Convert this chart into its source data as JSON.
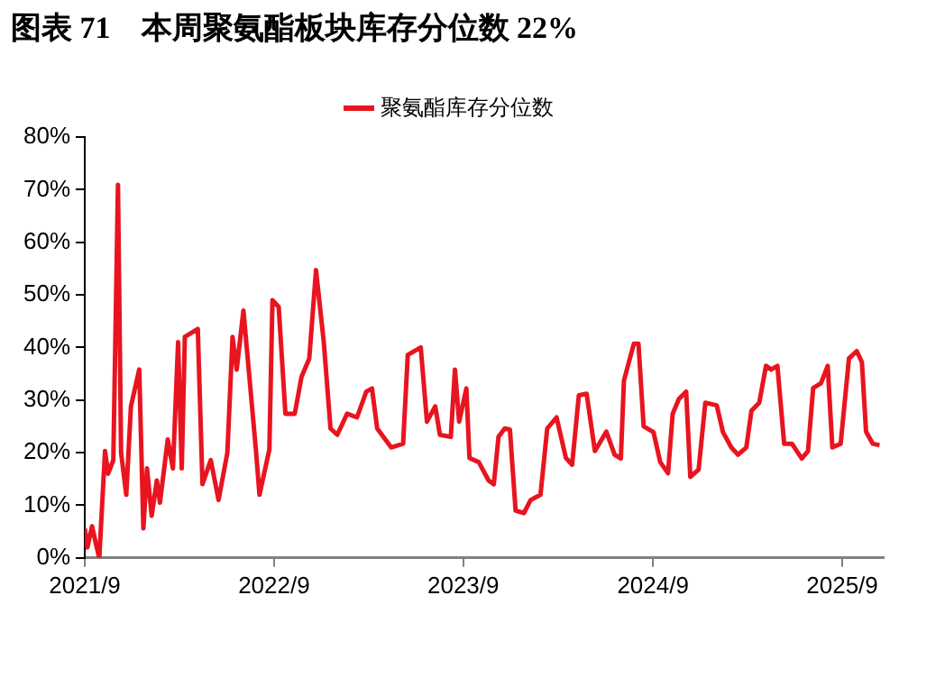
{
  "chart_data": {
    "type": "line",
    "title": "图表 71　本周聚氨酯板块库存分位数 22%",
    "xlim": [
      "2021-09-01",
      "2025-11-20"
    ],
    "xticks": [
      {
        "value": "2021-09-01",
        "label": "2021/9"
      },
      {
        "value": "2022-09-01",
        "label": "2022/9"
      },
      {
        "value": "2023-09-01",
        "label": "2023/9"
      },
      {
        "value": "2024-09-01",
        "label": "2024/9"
      },
      {
        "value": "2025-09-01",
        "label": "2025/9"
      }
    ],
    "ylim": [
      0,
      80
    ],
    "yticks": [
      {
        "value": 0,
        "label": "0%"
      },
      {
        "value": 10,
        "label": "10%"
      },
      {
        "value": 20,
        "label": "20%"
      },
      {
        "value": 30,
        "label": "30%"
      },
      {
        "value": 40,
        "label": "40%"
      },
      {
        "value": 50,
        "label": "50%"
      },
      {
        "value": 60,
        "label": "60%"
      },
      {
        "value": 70,
        "label": "70%"
      },
      {
        "value": 80,
        "label": "80%"
      }
    ],
    "grid": false,
    "legend": "top",
    "marker": "none",
    "line_style": "solid",
    "series": [
      {
        "name": "聚氨酯库存分位数",
        "color": "#e8141f",
        "x": [
          "2021-09-01",
          "2021-09-06",
          "2021-09-15",
          "2021-09-24",
          "2021-09-29",
          "2021-10-10",
          "2021-10-16",
          "2021-10-26",
          "2021-11-04",
          "2021-11-10",
          "2021-11-20",
          "2021-11-29",
          "2021-12-15",
          "2021-12-23",
          "2021-12-30",
          "2022-01-08",
          "2022-01-18",
          "2022-01-24",
          "2022-02-08",
          "2022-02-18",
          "2022-02-28",
          "2022-03-07",
          "2022-03-13",
          "2022-04-07",
          "2022-04-16",
          "2022-05-02",
          "2022-05-17",
          "2022-06-03",
          "2022-06-13",
          "2022-06-21",
          "2022-07-04",
          "2022-07-28",
          "2022-08-04",
          "2022-08-23",
          "2022-08-29",
          "2022-09-10",
          "2022-09-23",
          "2022-10-11",
          "2022-10-24",
          "2022-11-08",
          "2022-11-21",
          "2022-12-06",
          "2022-12-19",
          "2023-01-01",
          "2023-01-20",
          "2023-02-08",
          "2023-02-26",
          "2023-03-09",
          "2023-03-19",
          "2023-04-15",
          "2023-05-08",
          "2023-05-17",
          "2023-06-11",
          "2023-06-23",
          "2023-07-09",
          "2023-07-18",
          "2023-08-08",
          "2023-08-16",
          "2023-08-24",
          "2023-09-07",
          "2023-09-13",
          "2023-10-01",
          "2023-10-20",
          "2023-10-30",
          "2023-11-08",
          "2023-11-20",
          "2023-11-30",
          "2023-12-11",
          "2023-12-27",
          "2024-01-09",
          "2024-01-28",
          "2024-02-10",
          "2024-02-28",
          "2024-03-17",
          "2024-03-29",
          "2024-04-11",
          "2024-04-26",
          "2024-05-12",
          "2024-06-03",
          "2024-06-19",
          "2024-07-01",
          "2024-07-07",
          "2024-07-26",
          "2024-08-04",
          "2024-08-14",
          "2024-09-02",
          "2024-09-15",
          "2024-09-30",
          "2024-10-09",
          "2024-10-21",
          "2024-11-04",
          "2024-11-12",
          "2024-11-28",
          "2024-12-11",
          "2025-01-02",
          "2025-01-14",
          "2025-01-30",
          "2025-02-12",
          "2025-02-28",
          "2025-03-10",
          "2025-03-25",
          "2025-04-07",
          "2025-04-17",
          "2025-04-29",
          "2025-05-12",
          "2025-05-27",
          "2025-06-15",
          "2025-06-27",
          "2025-07-07",
          "2025-07-22",
          "2025-08-04",
          "2025-08-13",
          "2025-08-29",
          "2025-09-14",
          "2025-09-29",
          "2025-10-09",
          "2025-10-17",
          "2025-10-30",
          "2025-11-12"
        ],
        "values": [
          5.6,
          2,
          6,
          2,
          0,
          20.3,
          16,
          18.6,
          70.9,
          20,
          12,
          28.8,
          35.8,
          5.6,
          17,
          8,
          14.7,
          10.5,
          22.5,
          17,
          41,
          17,
          42,
          43.5,
          14,
          18.6,
          11,
          20,
          42,
          35.8,
          47,
          20.6,
          12,
          20.6,
          49,
          47.7,
          27.4,
          27.4,
          34.4,
          37.9,
          54.7,
          41,
          24.6,
          23.4,
          27.4,
          26.7,
          31.6,
          32.2,
          24.6,
          21,
          21.7,
          38.6,
          40,
          25.9,
          28.8,
          23.4,
          23,
          35.8,
          25.9,
          32.2,
          19,
          18.2,
          14.7,
          14,
          23,
          24.6,
          24.4,
          9,
          8.5,
          11,
          12,
          24.6,
          26.7,
          19,
          17.7,
          30.9,
          31.2,
          20.3,
          24,
          19.6,
          18.9,
          33.7,
          40.7,
          40.7,
          25,
          23.9,
          18.2,
          16.1,
          27.4,
          30.2,
          31.6,
          15.4,
          16.8,
          29.5,
          29,
          23.9,
          21,
          19.6,
          21,
          28,
          29.5,
          36.5,
          35.8,
          36.5,
          21.7,
          21.7,
          18.9,
          20.3,
          32.3,
          33.2,
          36.5,
          21,
          21.7,
          37.9,
          39.3,
          37.2,
          24,
          21.7,
          21.4
        ]
      }
    ]
  }
}
